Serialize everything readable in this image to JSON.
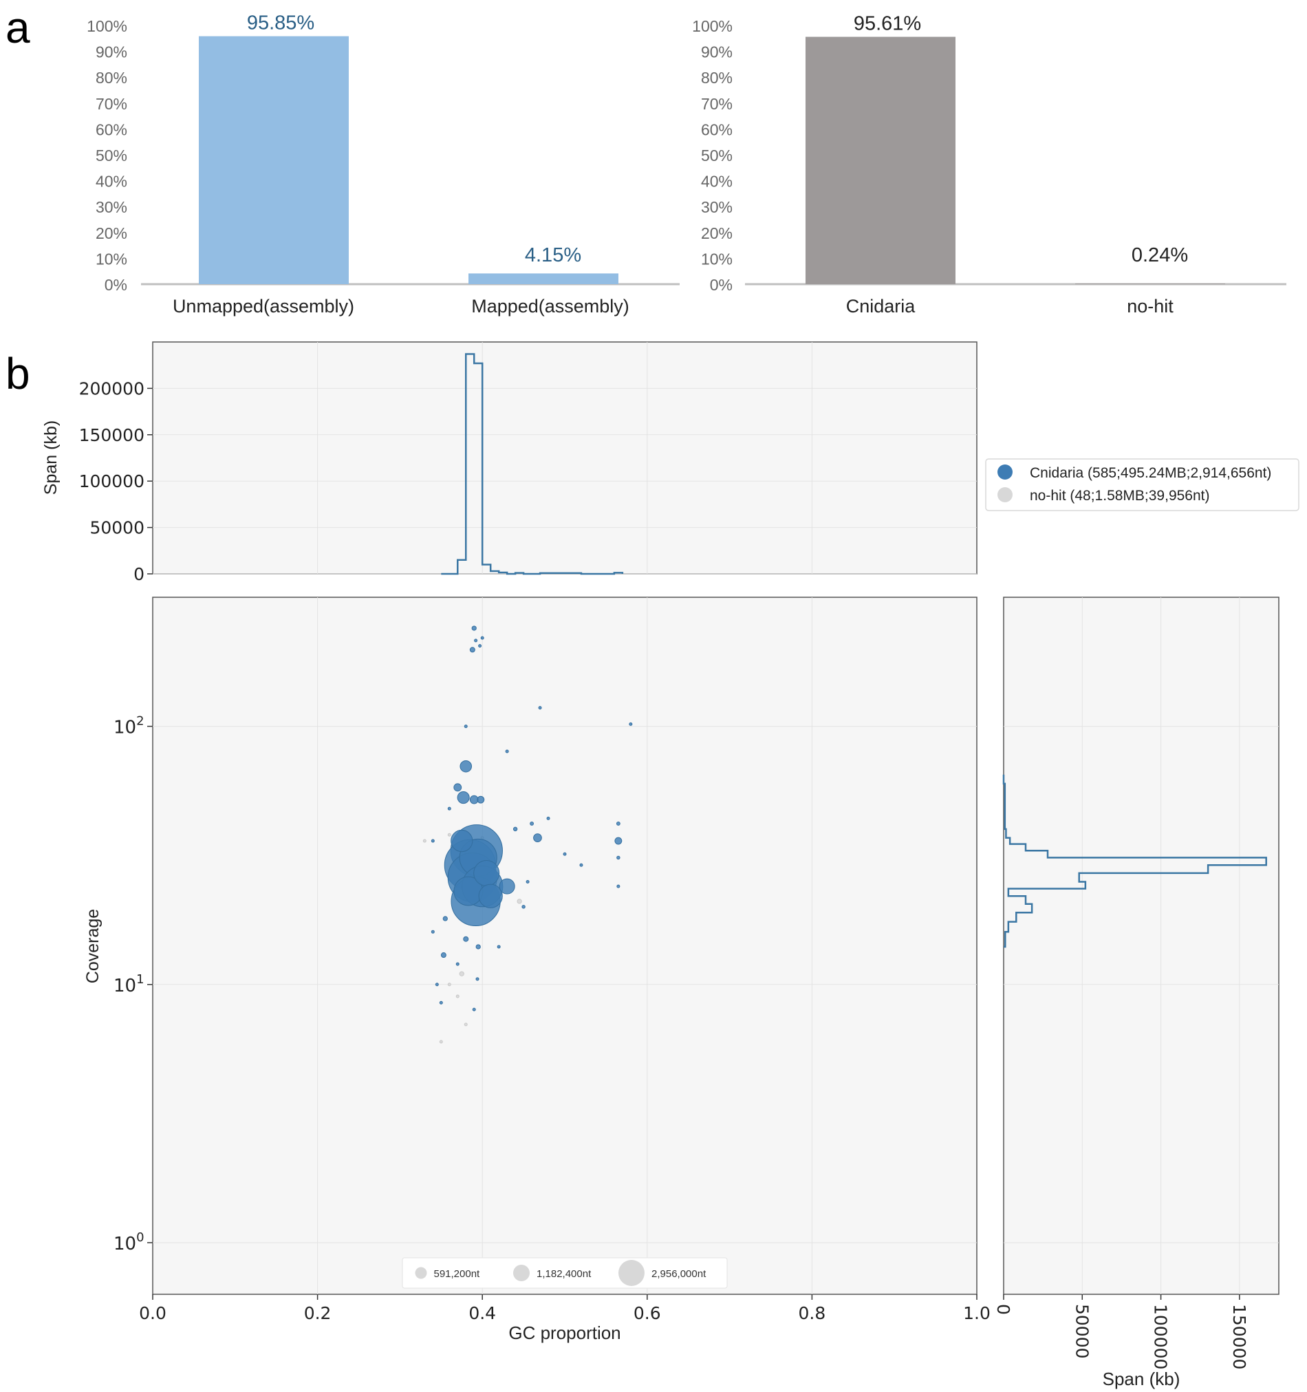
{
  "panel_labels": {
    "a": "a",
    "b": "b"
  },
  "colors": {
    "bar_blue": "#93bde3",
    "bar_gray": "#9d9999",
    "pct_label_blue": "#2a5f86",
    "pct_label_dark": "#222222",
    "tick_gray": "#666666",
    "baseline": "#bfbfbf",
    "plot_bg": "#f6f6f6",
    "grid": "#e3e3e3",
    "cnidaria": "#3d7cb4",
    "nohit": "#d8d8d8",
    "hist_line": "#3a76a3"
  },
  "chart_data": [
    {
      "id": "a-left",
      "type": "bar",
      "categories": [
        "Unmapped(assembly)",
        "Mapped(assembly)"
      ],
      "values": [
        95.85,
        4.15
      ],
      "value_labels": [
        "95.85%",
        "4.15%"
      ],
      "ylim": [
        0,
        100
      ],
      "yticks": [
        "0%",
        "10%",
        "20%",
        "30%",
        "40%",
        "50%",
        "60%",
        "70%",
        "80%",
        "90%",
        "100%"
      ]
    },
    {
      "id": "a-right",
      "type": "bar",
      "categories": [
        "Cnidaria",
        "no-hit"
      ],
      "values": [
        95.61,
        0.24
      ],
      "value_labels": [
        "95.61%",
        "0.24%"
      ],
      "ylim": [
        0,
        100
      ],
      "yticks": [
        "0%",
        "10%",
        "20%",
        "30%",
        "40%",
        "50%",
        "60%",
        "70%",
        "80%",
        "90%",
        "100%"
      ]
    },
    {
      "id": "b-top-hist",
      "type": "line",
      "title": "",
      "xlabel": "",
      "ylabel": "Span (kb)",
      "xlim": [
        0,
        1
      ],
      "ylim": [
        0,
        250000
      ],
      "yticks": [
        0,
        50000,
        100000,
        150000,
        200000
      ],
      "ytick_labels": [
        "0",
        "50000",
        "100000",
        "150000",
        "200000"
      ],
      "step_x": [
        0.35,
        0.36,
        0.37,
        0.38,
        0.39,
        0.4,
        0.41,
        0.42,
        0.43,
        0.44,
        0.45,
        0.47,
        0.52,
        0.56,
        0.57
      ],
      "step_y": [
        0,
        0,
        15000,
        237000,
        227000,
        10000,
        3000,
        1500,
        0,
        1000,
        0,
        800,
        0,
        1200,
        0
      ]
    },
    {
      "id": "b-scatter",
      "type": "scatter",
      "xlabel": "GC proportion",
      "ylabel": "Coverage",
      "xlim": [
        0.0,
        1.0
      ],
      "ylim_log10": [
        -0.2,
        2.5
      ],
      "xtick_labels": [
        "0.0",
        "0.2",
        "0.4",
        "0.6",
        "0.8",
        "1.0"
      ],
      "ytick_labels": [
        {
          "base": "10",
          "exp": "0",
          "value": 1
        },
        {
          "base": "10",
          "exp": "1",
          "value": 10
        },
        {
          "base": "10",
          "exp": "2",
          "value": 100
        }
      ],
      "series": [
        {
          "name": "Cnidaria",
          "legend_label": "Cnidaria (585;495.24MB;2,914,656nt)",
          "points": [
            {
              "x": 0.393,
              "y": 33,
              "size": 2900000
            },
            {
              "x": 0.385,
              "y": 29,
              "size": 2800000
            },
            {
              "x": 0.388,
              "y": 26,
              "size": 2600000
            },
            {
              "x": 0.392,
              "y": 21,
              "size": 2600000
            },
            {
              "x": 0.395,
              "y": 31,
              "size": 1500000
            },
            {
              "x": 0.4,
              "y": 24,
              "size": 1800000
            },
            {
              "x": 0.383,
              "y": 23,
              "size": 900000
            },
            {
              "x": 0.405,
              "y": 27,
              "size": 700000
            },
            {
              "x": 0.375,
              "y": 36,
              "size": 500000
            },
            {
              "x": 0.41,
              "y": 22,
              "size": 600000
            },
            {
              "x": 0.43,
              "y": 24,
              "size": 250000
            },
            {
              "x": 0.38,
              "y": 70,
              "size": 140000
            },
            {
              "x": 0.37,
              "y": 58,
              "size": 60000
            },
            {
              "x": 0.377,
              "y": 53,
              "size": 150000
            },
            {
              "x": 0.39,
              "y": 52,
              "size": 70000
            },
            {
              "x": 0.398,
              "y": 52,
              "size": 50000
            },
            {
              "x": 0.467,
              "y": 37,
              "size": 70000
            },
            {
              "x": 0.565,
              "y": 36,
              "size": 50000
            },
            {
              "x": 0.388,
              "y": 198,
              "size": 25000
            },
            {
              "x": 0.39,
              "y": 240,
              "size": 20000
            },
            {
              "x": 0.355,
              "y": 18,
              "size": 20000
            },
            {
              "x": 0.38,
              "y": 15,
              "size": 25000
            },
            {
              "x": 0.395,
              "y": 14,
              "size": 20000
            },
            {
              "x": 0.353,
              "y": 13,
              "size": 25000
            },
            {
              "x": 0.44,
              "y": 40,
              "size": 15000
            },
            {
              "x": 0.46,
              "y": 42,
              "size": 12000
            },
            {
              "x": 0.565,
              "y": 42,
              "size": 12000
            },
            {
              "x": 0.565,
              "y": 31,
              "size": 10000
            },
            {
              "x": 0.565,
              "y": 24,
              "size": 8000
            },
            {
              "x": 0.45,
              "y": 20,
              "size": 10000
            },
            {
              "x": 0.455,
              "y": 25,
              "size": 8000
            },
            {
              "x": 0.37,
              "y": 12,
              "size": 8000
            },
            {
              "x": 0.34,
              "y": 16,
              "size": 8000
            },
            {
              "x": 0.345,
              "y": 10,
              "size": 5000
            },
            {
              "x": 0.35,
              "y": 8.5,
              "size": 5000
            },
            {
              "x": 0.39,
              "y": 8,
              "size": 4000
            },
            {
              "x": 0.394,
              "y": 10.5,
              "size": 5000
            },
            {
              "x": 0.4,
              "y": 220,
              "size": 6000
            },
            {
              "x": 0.392,
              "y": 215,
              "size": 6000
            },
            {
              "x": 0.397,
              "y": 205,
              "size": 6000
            },
            {
              "x": 0.38,
              "y": 100,
              "size": 4000
            },
            {
              "x": 0.43,
              "y": 80,
              "size": 5000
            },
            {
              "x": 0.48,
              "y": 44,
              "size": 5000
            },
            {
              "x": 0.52,
              "y": 29,
              "size": 5000
            },
            {
              "x": 0.5,
              "y": 32,
              "size": 4000
            },
            {
              "x": 0.58,
              "y": 102,
              "size": 3000
            },
            {
              "x": 0.47,
              "y": 118,
              "size": 3000
            },
            {
              "x": 0.34,
              "y": 36,
              "size": 4000
            },
            {
              "x": 0.36,
              "y": 48,
              "size": 5000
            },
            {
              "x": 0.42,
              "y": 14,
              "size": 5000
            }
          ]
        },
        {
          "name": "no-hit",
          "legend_label": "no-hit (48;1.58MB;39,956nt)",
          "points": [
            {
              "x": 0.375,
              "y": 11,
              "size": 20000
            },
            {
              "x": 0.445,
              "y": 21,
              "size": 20000
            },
            {
              "x": 0.37,
              "y": 9,
              "size": 5000
            },
            {
              "x": 0.36,
              "y": 10,
              "size": 5000
            },
            {
              "x": 0.38,
              "y": 7,
              "size": 4000
            },
            {
              "x": 0.35,
              "y": 6,
              "size": 3000
            },
            {
              "x": 0.4,
              "y": 37,
              "size": 8000
            },
            {
              "x": 0.33,
              "y": 36,
              "size": 4000
            },
            {
              "x": 0.36,
              "y": 38,
              "size": 4000
            }
          ]
        }
      ],
      "size_legend": [
        "591,200nt",
        "1,182,400nt",
        "2,956,000nt"
      ],
      "size_legend_values": [
        591200,
        1182400,
        2956000
      ]
    },
    {
      "id": "b-right-hist",
      "type": "line",
      "xlabel": "Span (kb)",
      "xlim": [
        0,
        175000
      ],
      "xticks": [
        0,
        50000,
        100000,
        150000
      ],
      "xtick_labels": [
        "0",
        "50000",
        "100000",
        "150000"
      ],
      "step_cov": [
        14,
        16,
        17.5,
        19,
        20.5,
        22,
        23.5,
        25,
        27,
        29,
        31,
        33,
        35,
        37,
        40,
        60,
        65
      ],
      "step_span": [
        1000,
        3000,
        8000,
        18000,
        14000,
        3000,
        52000,
        48000,
        130000,
        167000,
        28000,
        14000,
        4000,
        1500,
        800,
        0
      ]
    }
  ]
}
